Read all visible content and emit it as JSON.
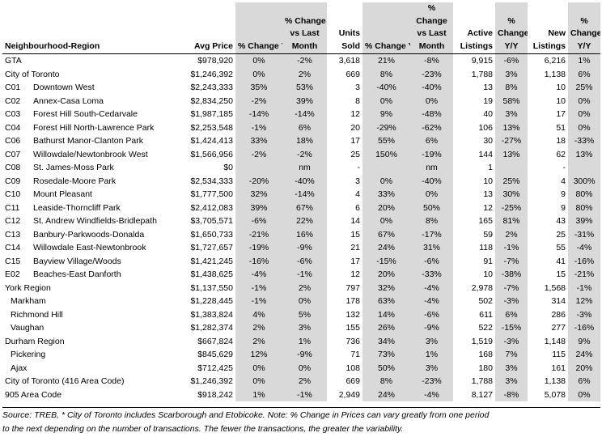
{
  "headers": {
    "neighbourhood": "Neighbourhood-Region",
    "avg_price": "Avg Price",
    "pct_yy": "% Change Y/Y",
    "pct_month_a": "% Change",
    "pct_month_b": "vs Last",
    "pct_month_c": "Month",
    "units_a": "Units",
    "units_b": "Sold",
    "units_pct": "% Change Y/Y",
    "units_month_a": "%",
    "units_month_b": "Change",
    "units_month_c": "vs Last",
    "units_month_d": "Month",
    "active_a": "Active",
    "active_b": "Listings",
    "active_pct_a": "%",
    "active_pct_b": "Change",
    "active_pct_c": "Y/Y",
    "new_a": "New",
    "new_b": "Listings",
    "new_pct_a": "%",
    "new_pct_b": "Change",
    "new_pct_c": "Y/Y"
  },
  "rows": [
    {
      "code": "",
      "name": "GTA",
      "indent": false,
      "price": "$978,920",
      "p_yy": "0%",
      "p_mm": "-2%",
      "units": "3,618",
      "u_yy": "21%",
      "u_mm": "-8%",
      "active": "9,915",
      "a_yy": "-6%",
      "new": "6,216",
      "n_yy": "1%"
    },
    {
      "code": "",
      "name": "City of Toronto",
      "indent": false,
      "price": "$1,246,392",
      "p_yy": "0%",
      "p_mm": "2%",
      "units": "669",
      "u_yy": "8%",
      "u_mm": "-23%",
      "active": "1,788",
      "a_yy": "3%",
      "new": "1,138",
      "n_yy": "6%"
    },
    {
      "code": "C01",
      "name": "Downtown West",
      "indent": false,
      "price": "$2,243,333",
      "p_yy": "35%",
      "p_mm": "53%",
      "units": "3",
      "u_yy": "-40%",
      "u_mm": "-40%",
      "active": "13",
      "a_yy": "8%",
      "new": "10",
      "n_yy": "25%"
    },
    {
      "code": "C02",
      "name": "Annex-Casa Loma",
      "indent": false,
      "price": "$2,834,250",
      "p_yy": "-2%",
      "p_mm": "39%",
      "units": "8",
      "u_yy": "0%",
      "u_mm": "0%",
      "active": "19",
      "a_yy": "58%",
      "new": "10",
      "n_yy": "0%"
    },
    {
      "code": "C03",
      "name": "Forest Hill South-Cedarvale",
      "indent": false,
      "price": "$1,987,185",
      "p_yy": "-14%",
      "p_mm": "-14%",
      "units": "12",
      "u_yy": "9%",
      "u_mm": "-48%",
      "active": "40",
      "a_yy": "3%",
      "new": "17",
      "n_yy": "0%"
    },
    {
      "code": "C04",
      "name": "Forest Hill North-Lawrence Park",
      "indent": false,
      "price": "$2,253,548",
      "p_yy": "-1%",
      "p_mm": "6%",
      "units": "20",
      "u_yy": "-29%",
      "u_mm": "-62%",
      "active": "106",
      "a_yy": "13%",
      "new": "51",
      "n_yy": "0%"
    },
    {
      "code": "C06",
      "name": "Bathurst Manor-Clanton Park",
      "indent": false,
      "price": "$1,424,413",
      "p_yy": "33%",
      "p_mm": "18%",
      "units": "17",
      "u_yy": "55%",
      "u_mm": "6%",
      "active": "30",
      "a_yy": "-27%",
      "new": "18",
      "n_yy": "-33%"
    },
    {
      "code": "C07",
      "name": "Willowdale/Newtonbrook West",
      "indent": false,
      "price": "$1,566,956",
      "p_yy": "-2%",
      "p_mm": "-2%",
      "units": "25",
      "u_yy": "150%",
      "u_mm": "-19%",
      "active": "144",
      "a_yy": "13%",
      "new": "62",
      "n_yy": "13%"
    },
    {
      "code": "C08",
      "name": "St. James-Moss Park",
      "indent": false,
      "price": "$0",
      "p_yy": "",
      "p_mm": "nm",
      "units": "-",
      "u_yy": "",
      "u_mm": "nm",
      "active": "1",
      "a_yy": "",
      "new": "-",
      "n_yy": ""
    },
    {
      "code": "C09",
      "name": "Rosedale-Moore Park",
      "indent": false,
      "price": "$2,534,333",
      "p_yy": "-20%",
      "p_mm": "-40%",
      "units": "3",
      "u_yy": "0%",
      "u_mm": "-40%",
      "active": "10",
      "a_yy": "25%",
      "new": "4",
      "n_yy": "300%"
    },
    {
      "code": "C10",
      "name": "Mount Pleasant",
      "indent": false,
      "price": "$1,777,500",
      "p_yy": "32%",
      "p_mm": "-14%",
      "units": "4",
      "u_yy": "33%",
      "u_mm": "0%",
      "active": "13",
      "a_yy": "30%",
      "new": "9",
      "n_yy": "80%"
    },
    {
      "code": "C11",
      "name": "Leaside-Thorncliff Park",
      "indent": false,
      "price": "$2,412,083",
      "p_yy": "39%",
      "p_mm": "67%",
      "units": "6",
      "u_yy": "20%",
      "u_mm": "50%",
      "active": "12",
      "a_yy": "-25%",
      "new": "9",
      "n_yy": "80%"
    },
    {
      "code": "C12",
      "name": "St. Andrew Windfields-Bridlepath",
      "indent": false,
      "price": "$3,705,571",
      "p_yy": "-6%",
      "p_mm": "22%",
      "units": "14",
      "u_yy": "0%",
      "u_mm": "8%",
      "active": "165",
      "a_yy": "81%",
      "new": "43",
      "n_yy": "39%"
    },
    {
      "code": "C13",
      "name": "Banbury-Parkwoods-Donalda",
      "indent": false,
      "price": "$1,650,733",
      "p_yy": "-21%",
      "p_mm": "16%",
      "units": "15",
      "u_yy": "67%",
      "u_mm": "-17%",
      "active": "59",
      "a_yy": "2%",
      "new": "25",
      "n_yy": "-31%"
    },
    {
      "code": "C14",
      "name": "Willowdale East-Newtonbrook",
      "indent": false,
      "price": "$1,727,657",
      "p_yy": "-19%",
      "p_mm": "-9%",
      "units": "21",
      "u_yy": "24%",
      "u_mm": "31%",
      "active": "118",
      "a_yy": "-1%",
      "new": "55",
      "n_yy": "-4%"
    },
    {
      "code": "C15",
      "name": "Bayview Village/Woods",
      "indent": false,
      "price": "$1,421,245",
      "p_yy": "-16%",
      "p_mm": "-6%",
      "units": "17",
      "u_yy": "-15%",
      "u_mm": "-6%",
      "active": "91",
      "a_yy": "-7%",
      "new": "41",
      "n_yy": "-16%"
    },
    {
      "code": "E02",
      "name": "Beaches-East Danforth",
      "indent": false,
      "price": "$1,438,625",
      "p_yy": "-4%",
      "p_mm": "-1%",
      "units": "12",
      "u_yy": "20%",
      "u_mm": "-33%",
      "active": "10",
      "a_yy": "-38%",
      "new": "15",
      "n_yy": "-21%"
    },
    {
      "code": "",
      "name": "York Region",
      "indent": false,
      "price": "$1,137,550",
      "p_yy": "-1%",
      "p_mm": "2%",
      "units": "797",
      "u_yy": "32%",
      "u_mm": "-4%",
      "active": "2,978",
      "a_yy": "-7%",
      "new": "1,568",
      "n_yy": "-1%"
    },
    {
      "code": "",
      "name": "Markham",
      "indent": true,
      "price": "$1,228,445",
      "p_yy": "-1%",
      "p_mm": "0%",
      "units": "178",
      "u_yy": "63%",
      "u_mm": "-4%",
      "active": "502",
      "a_yy": "-3%",
      "new": "314",
      "n_yy": "12%"
    },
    {
      "code": "",
      "name": "Richmond Hill",
      "indent": true,
      "price": "$1,383,824",
      "p_yy": "4%",
      "p_mm": "5%",
      "units": "132",
      "u_yy": "14%",
      "u_mm": "-6%",
      "active": "611",
      "a_yy": "6%",
      "new": "286",
      "n_yy": "-3%"
    },
    {
      "code": "",
      "name": "Vaughan",
      "indent": true,
      "price": "$1,282,374",
      "p_yy": "2%",
      "p_mm": "3%",
      "units": "155",
      "u_yy": "26%",
      "u_mm": "-9%",
      "active": "522",
      "a_yy": "-15%",
      "new": "277",
      "n_yy": "-16%"
    },
    {
      "code": "",
      "name": "Durham Region",
      "indent": false,
      "price": "$667,824",
      "p_yy": "2%",
      "p_mm": "1%",
      "units": "736",
      "u_yy": "34%",
      "u_mm": "3%",
      "active": "1,519",
      "a_yy": "-3%",
      "new": "1,148",
      "n_yy": "9%"
    },
    {
      "code": "",
      "name": "Pickering",
      "indent": true,
      "price": "$845,629",
      "p_yy": "12%",
      "p_mm": "-9%",
      "units": "71",
      "u_yy": "73%",
      "u_mm": "1%",
      "active": "168",
      "a_yy": "7%",
      "new": "115",
      "n_yy": "24%"
    },
    {
      "code": "",
      "name": "Ajax",
      "indent": true,
      "price": "$712,425",
      "p_yy": "0%",
      "p_mm": "0%",
      "units": "108",
      "u_yy": "50%",
      "u_mm": "3%",
      "active": "180",
      "a_yy": "3%",
      "new": "161",
      "n_yy": "20%"
    },
    {
      "code": "",
      "name": "City of Toronto (416 Area Code)",
      "indent": false,
      "price": "$1,246,392",
      "p_yy": "0%",
      "p_mm": "2%",
      "units": "669",
      "u_yy": "8%",
      "u_mm": "-23%",
      "active": "1,788",
      "a_yy": "3%",
      "new": "1,138",
      "n_yy": "6%"
    },
    {
      "code": "",
      "name": "905 Area Code",
      "indent": false,
      "price": "$918,242",
      "p_yy": "1%",
      "p_mm": "-1%",
      "units": "2,949",
      "u_yy": "24%",
      "u_mm": "-4%",
      "active": "8,127",
      "a_yy": "-8%",
      "new": "5,078",
      "n_yy": "0%"
    }
  ],
  "source_line1": "Source: TREB, * City of Toronto includes Scarborough and Etobicoke. Note: % Change in Prices can vary greatly from one period",
  "source_line2": "to the next depending on the number of transactions. The fewer the transactions, the greater the variability."
}
